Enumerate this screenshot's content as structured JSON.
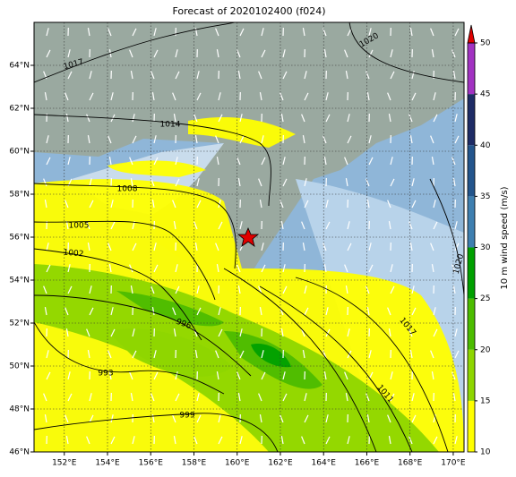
{
  "title": "Forecast of 2020102400 (f024)",
  "map": {
    "xlim": [
      150.6,
      170.5
    ],
    "ylim": [
      46,
      66
    ],
    "xticks": [
      {
        "value": 152,
        "label": "152°E"
      },
      {
        "value": 154,
        "label": "154°E"
      },
      {
        "value": 156,
        "label": "156°E"
      },
      {
        "value": 158,
        "label": "158°E"
      },
      {
        "value": 160,
        "label": "160°E"
      },
      {
        "value": 162,
        "label": "162°E"
      },
      {
        "value": 164,
        "label": "164°E"
      },
      {
        "value": 166,
        "label": "166°E"
      },
      {
        "value": 168,
        "label": "168°E"
      },
      {
        "value": 170,
        "label": "170°E"
      }
    ],
    "yticks": [
      {
        "value": 46,
        "label": "46°N"
      },
      {
        "value": 48,
        "label": "48°N"
      },
      {
        "value": 50,
        "label": "50°N"
      },
      {
        "value": 52,
        "label": "52°N"
      },
      {
        "value": 54,
        "label": "54°N"
      },
      {
        "value": 56,
        "label": "56°N"
      },
      {
        "value": 58,
        "label": "58°N"
      },
      {
        "value": 60,
        "label": "60°N"
      },
      {
        "value": 62,
        "label": "62°N"
      },
      {
        "value": 64,
        "label": "64°N"
      }
    ],
    "grid": true
  },
  "colorbar": {
    "label": "10 m wind speed (m/s)",
    "lim": [
      10,
      50
    ],
    "ticks": [
      10,
      15,
      20,
      25,
      30,
      35,
      40,
      45,
      50
    ],
    "colors": [
      "#ffff00",
      "#8ed600",
      "#4cbc00",
      "#00a000",
      "#3e7fb0",
      "#23558c",
      "#1e2c66",
      "#a232c2"
    ],
    "extend_color": "#e00000"
  },
  "isobar_labels": [
    1017,
    1020,
    1014,
    1008,
    1005,
    1002,
    996,
    993,
    999,
    1011,
    1017,
    1020
  ]
}
